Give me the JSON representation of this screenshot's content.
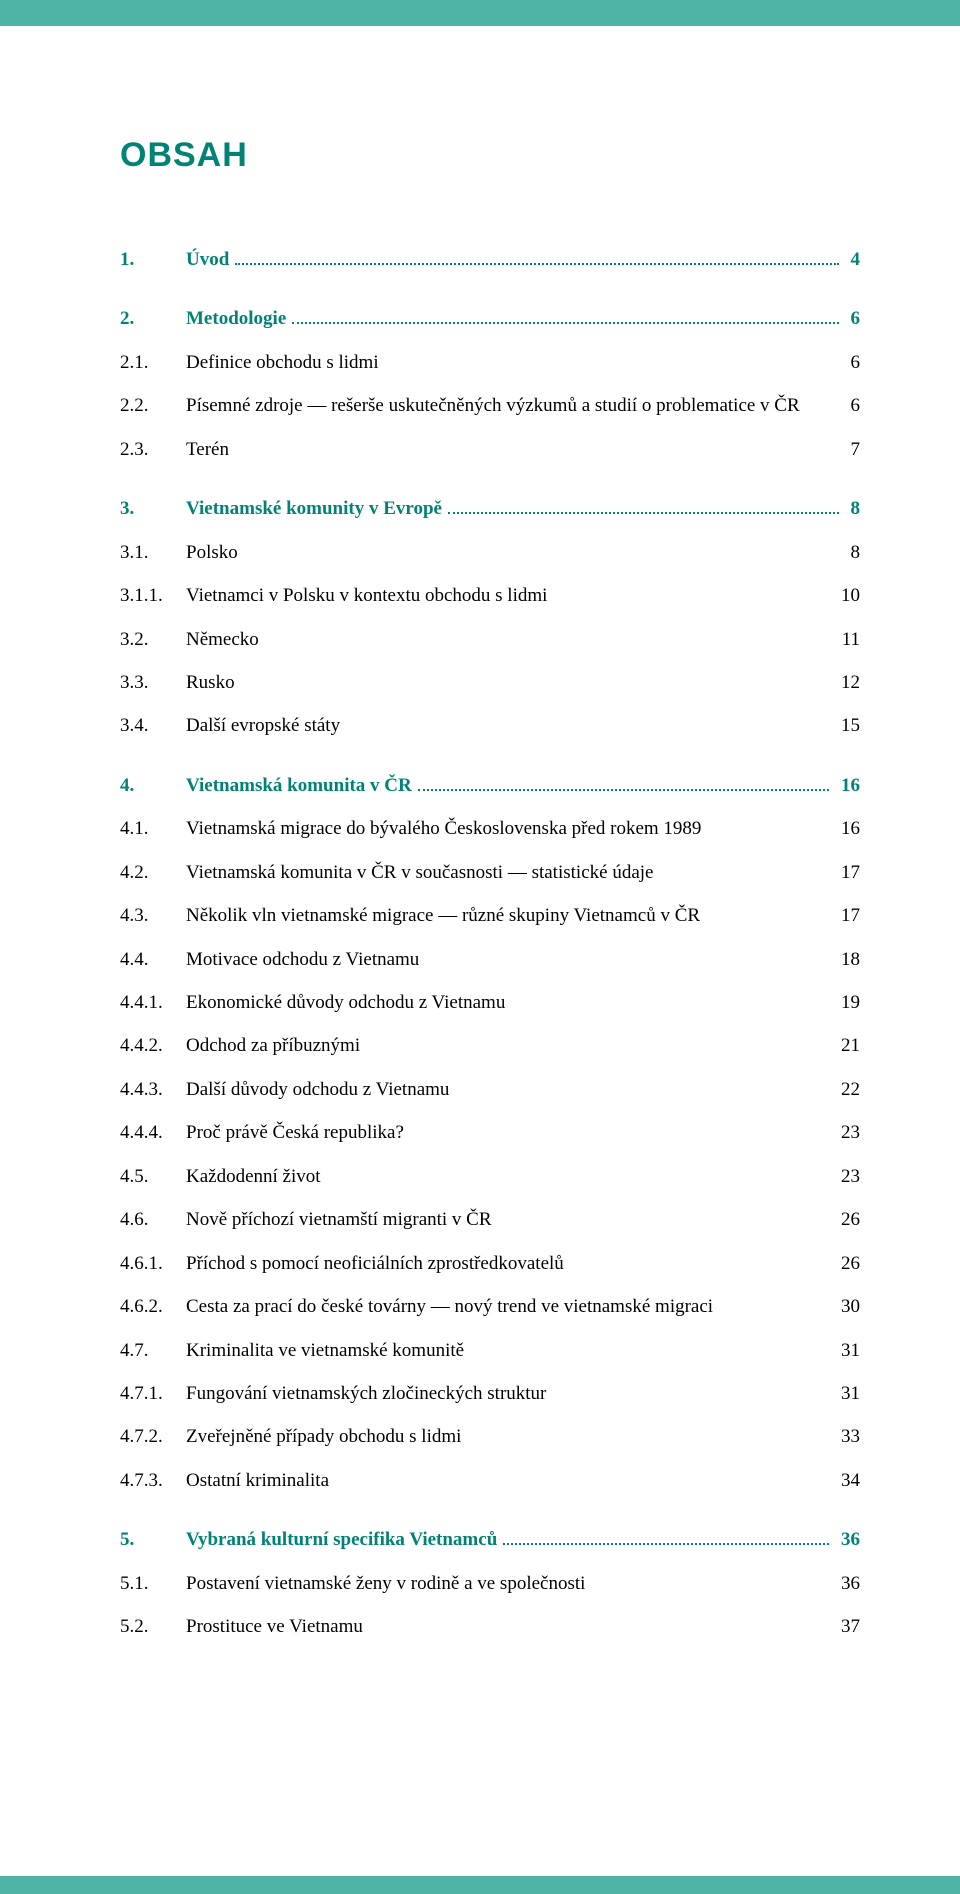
{
  "colors": {
    "accent": "#008275",
    "bar": "#4fb3a5",
    "text": "#000000",
    "background": "#ffffff"
  },
  "typography": {
    "title_fontsize": 34,
    "body_fontsize": 19,
    "title_weight": "bold",
    "title_family": "sans-serif",
    "body_family": "serif"
  },
  "title": "OBSAH",
  "toc": [
    {
      "num": "1.",
      "label": "Úvod",
      "page": "4",
      "style": "heading",
      "leader": true,
      "first": false
    },
    {
      "num": "2.",
      "label": "Metodologie",
      "page": "6",
      "style": "heading",
      "leader": true,
      "first": true
    },
    {
      "num": "2.1.",
      "label": "Definice obchodu s lidmi",
      "page": "6",
      "style": "normal",
      "leader": false,
      "first": false
    },
    {
      "num": "2.2.",
      "label": "Písemné zdroje — rešerše uskutečněných výzkumů a studií o problematice v ČR",
      "page": "6",
      "style": "normal",
      "leader": false,
      "first": false
    },
    {
      "num": "2.3.",
      "label": "Terén",
      "page": "7",
      "style": "normal",
      "leader": false,
      "first": false
    },
    {
      "num": "3.",
      "label": "Vietnamské komunity v Evropě",
      "page": "8",
      "style": "heading",
      "leader": true,
      "first": true
    },
    {
      "num": "3.1.",
      "label": "Polsko",
      "page": "8",
      "style": "normal",
      "leader": false,
      "first": false
    },
    {
      "num": "3.1.1.",
      "label": "Vietnamci v Polsku v kontextu obchodu s lidmi",
      "page": "10",
      "style": "normal",
      "leader": false,
      "first": false
    },
    {
      "num": "3.2.",
      "label": "Německo",
      "page": "11",
      "style": "normal",
      "leader": false,
      "first": false
    },
    {
      "num": "3.3.",
      "label": "Rusko",
      "page": "12",
      "style": "normal",
      "leader": false,
      "first": false
    },
    {
      "num": "3.4.",
      "label": "Další evropské státy",
      "page": "15",
      "style": "normal",
      "leader": false,
      "first": false
    },
    {
      "num": "4.",
      "label": "Vietnamská komunita v ČR",
      "page": "16",
      "style": "heading",
      "leader": true,
      "first": true
    },
    {
      "num": "4.1.",
      "label": "Vietnamská migrace do bývalého Československa před rokem 1989",
      "page": "16",
      "style": "normal",
      "leader": false,
      "first": false
    },
    {
      "num": "4.2.",
      "label": "Vietnamská komunita v ČR v současnosti — statistické údaje",
      "page": "17",
      "style": "normal",
      "leader": false,
      "first": false
    },
    {
      "num": "4.3.",
      "label": "Několik vln vietnamské migrace — různé skupiny Vietnamců v ČR",
      "page": "17",
      "style": "normal",
      "leader": false,
      "first": false
    },
    {
      "num": "4.4.",
      "label": "Motivace odchodu z Vietnamu",
      "page": "18",
      "style": "normal",
      "leader": false,
      "first": false
    },
    {
      "num": "4.4.1.",
      "label": "Ekonomické důvody odchodu z Vietnamu",
      "page": "19",
      "style": "normal",
      "leader": false,
      "first": false
    },
    {
      "num": "4.4.2.",
      "label": "Odchod za příbuznými",
      "page": "21",
      "style": "normal",
      "leader": false,
      "first": false
    },
    {
      "num": "4.4.3.",
      "label": "Další důvody odchodu z Vietnamu",
      "page": "22",
      "style": "normal",
      "leader": false,
      "first": false
    },
    {
      "num": "4.4.4.",
      "label": "Proč právě Česká republika?",
      "page": "23",
      "style": "normal",
      "leader": false,
      "first": false
    },
    {
      "num": "4.5.",
      "label": "Každodenní život",
      "page": "23",
      "style": "normal",
      "leader": false,
      "first": false
    },
    {
      "num": "4.6.",
      "label": "Nově příchozí vietnamští migranti v ČR",
      "page": "26",
      "style": "normal",
      "leader": false,
      "first": false
    },
    {
      "num": "4.6.1.",
      "label": "Příchod s pomocí neoficiálních zprostředkovatelů",
      "page": "26",
      "style": "normal",
      "leader": false,
      "first": false
    },
    {
      "num": "4.6.2.",
      "label": "Cesta za prací do české továrny — nový trend ve vietnamské migraci",
      "page": "30",
      "style": "normal",
      "leader": false,
      "first": false
    },
    {
      "num": "4.7.",
      "label": "Kriminalita ve vietnamské komunitě",
      "page": "31",
      "style": "normal",
      "leader": false,
      "first": false
    },
    {
      "num": "4.7.1.",
      "label": "Fungování vietnamských zločineckých struktur",
      "page": "31",
      "style": "normal",
      "leader": false,
      "first": false
    },
    {
      "num": "4.7.2.",
      "label": "Zveřejněné případy obchodu s lidmi",
      "page": "33",
      "style": "normal",
      "leader": false,
      "first": false
    },
    {
      "num": "4.7.3.",
      "label": "Ostatní kriminalita",
      "page": "34",
      "style": "normal",
      "leader": false,
      "first": false
    },
    {
      "num": "5.",
      "label": "Vybraná kulturní specifika Vietnamců",
      "page": "36",
      "style": "heading",
      "leader": true,
      "first": true
    },
    {
      "num": "5.1.",
      "label": "Postavení vietnamské ženy v rodině a ve společnosti",
      "page": "36",
      "style": "normal",
      "leader": false,
      "first": false
    },
    {
      "num": "5.2.",
      "label": "Prostituce ve Vietnamu",
      "page": "37",
      "style": "normal",
      "leader": false,
      "first": false
    }
  ]
}
